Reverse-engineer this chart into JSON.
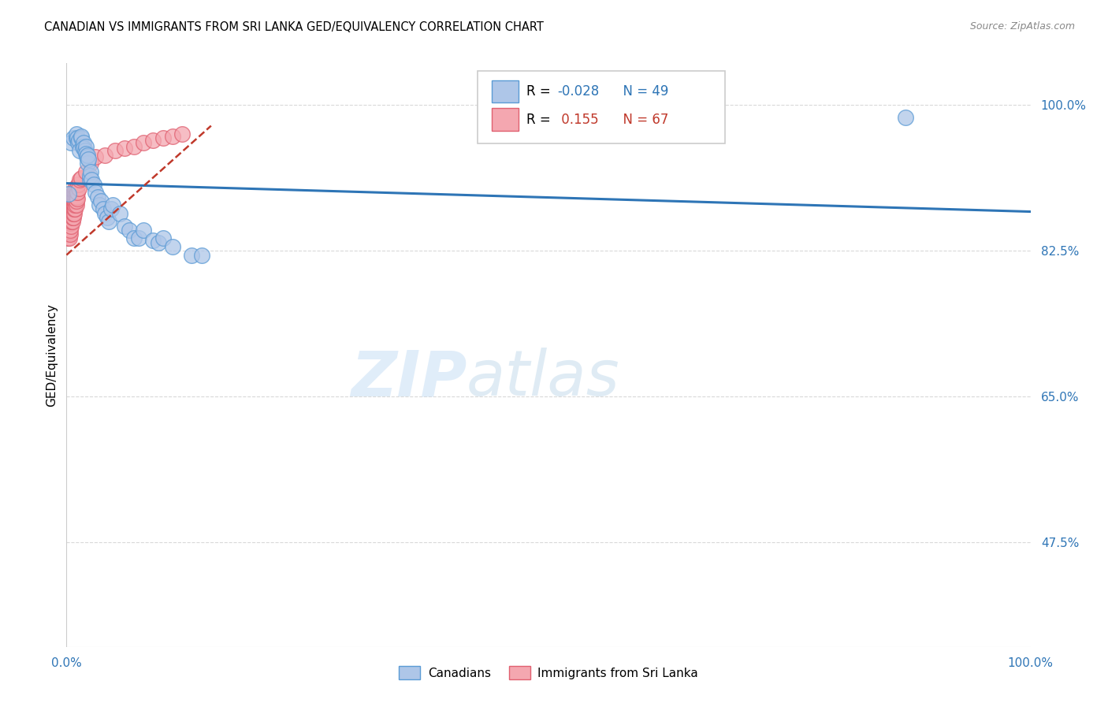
{
  "title": "CANADIAN VS IMMIGRANTS FROM SRI LANKA GED/EQUIVALENCY CORRELATION CHART",
  "source": "Source: ZipAtlas.com",
  "ylabel": "GED/Equivalency",
  "ytick_labels": [
    "100.0%",
    "82.5%",
    "65.0%",
    "47.5%"
  ],
  "ytick_values": [
    1.0,
    0.825,
    0.65,
    0.475
  ],
  "watermark_zip": "ZIP",
  "watermark_atlas": "atlas",
  "legend_label1": "Canadians",
  "legend_label2": "Immigrants from Sri Lanka",
  "canadian_color": "#aec6e8",
  "canadian_edge": "#5b9bd5",
  "srilanka_color": "#f4a7b0",
  "srilanka_edge": "#e06070",
  "trendline_canadian_color": "#2e75b6",
  "trendline_srilanka_color": "#c0392b",
  "xmin": 0.0,
  "xmax": 1.0,
  "ymin": 0.35,
  "ymax": 1.05,
  "grid_color": "#d9d9d9",
  "background_color": "#ffffff",
  "canadian_x": [
    0.005,
    0.007,
    0.01,
    0.01,
    0.011,
    0.012,
    0.013,
    0.014,
    0.015,
    0.015,
    0.017,
    0.018,
    0.018,
    0.019,
    0.02,
    0.02,
    0.021,
    0.022,
    0.022,
    0.023,
    0.024,
    0.024,
    0.025,
    0.026,
    0.028,
    0.03,
    0.032,
    0.034,
    0.036,
    0.038,
    0.04,
    0.042,
    0.044,
    0.046,
    0.048,
    0.055,
    0.06,
    0.065,
    0.07,
    0.075,
    0.08,
    0.09,
    0.095,
    0.1,
    0.11,
    0.13,
    0.14,
    0.87,
    0.002
  ],
  "canadian_y": [
    0.955,
    0.96,
    0.96,
    0.965,
    0.96,
    0.955,
    0.958,
    0.945,
    0.96,
    0.962,
    0.95,
    0.955,
    0.948,
    0.945,
    0.95,
    0.942,
    0.938,
    0.93,
    0.94,
    0.935,
    0.91,
    0.915,
    0.92,
    0.91,
    0.905,
    0.895,
    0.89,
    0.88,
    0.885,
    0.875,
    0.87,
    0.865,
    0.86,
    0.875,
    0.88,
    0.87,
    0.855,
    0.85,
    0.84,
    0.84,
    0.85,
    0.838,
    0.835,
    0.84,
    0.83,
    0.82,
    0.82,
    0.985,
    0.893
  ],
  "canadian_trendline_x": [
    0.0,
    1.0
  ],
  "canadian_trendline_y": [
    0.906,
    0.872
  ],
  "srilanka_x": [
    0.001,
    0.001,
    0.001,
    0.002,
    0.002,
    0.002,
    0.003,
    0.003,
    0.003,
    0.003,
    0.003,
    0.004,
    0.004,
    0.004,
    0.004,
    0.004,
    0.005,
    0.005,
    0.005,
    0.005,
    0.006,
    0.006,
    0.006,
    0.006,
    0.006,
    0.007,
    0.007,
    0.007,
    0.007,
    0.007,
    0.007,
    0.007,
    0.008,
    0.008,
    0.008,
    0.008,
    0.008,
    0.008,
    0.009,
    0.009,
    0.009,
    0.009,
    0.009,
    0.009,
    0.01,
    0.01,
    0.01,
    0.01,
    0.01,
    0.011,
    0.011,
    0.012,
    0.013,
    0.014,
    0.015,
    0.02,
    0.025,
    0.03,
    0.04,
    0.05,
    0.06,
    0.07,
    0.08,
    0.09,
    0.1,
    0.11,
    0.12
  ],
  "srilanka_y": [
    0.84,
    0.85,
    0.86,
    0.845,
    0.855,
    0.865,
    0.84,
    0.848,
    0.852,
    0.856,
    0.87,
    0.845,
    0.85,
    0.858,
    0.862,
    0.87,
    0.855,
    0.86,
    0.868,
    0.875,
    0.86,
    0.865,
    0.87,
    0.875,
    0.88,
    0.865,
    0.87,
    0.875,
    0.88,
    0.885,
    0.89,
    0.895,
    0.87,
    0.875,
    0.88,
    0.885,
    0.89,
    0.895,
    0.875,
    0.88,
    0.885,
    0.89,
    0.895,
    0.9,
    0.88,
    0.885,
    0.89,
    0.895,
    0.9,
    0.888,
    0.895,
    0.905,
    0.9,
    0.91,
    0.912,
    0.92,
    0.93,
    0.938,
    0.94,
    0.945,
    0.948,
    0.95,
    0.955,
    0.958,
    0.96,
    0.962,
    0.965
  ],
  "srilanka_trendline_x": [
    0.0,
    0.15
  ],
  "srilanka_trendline_y": [
    0.82,
    0.975
  ]
}
